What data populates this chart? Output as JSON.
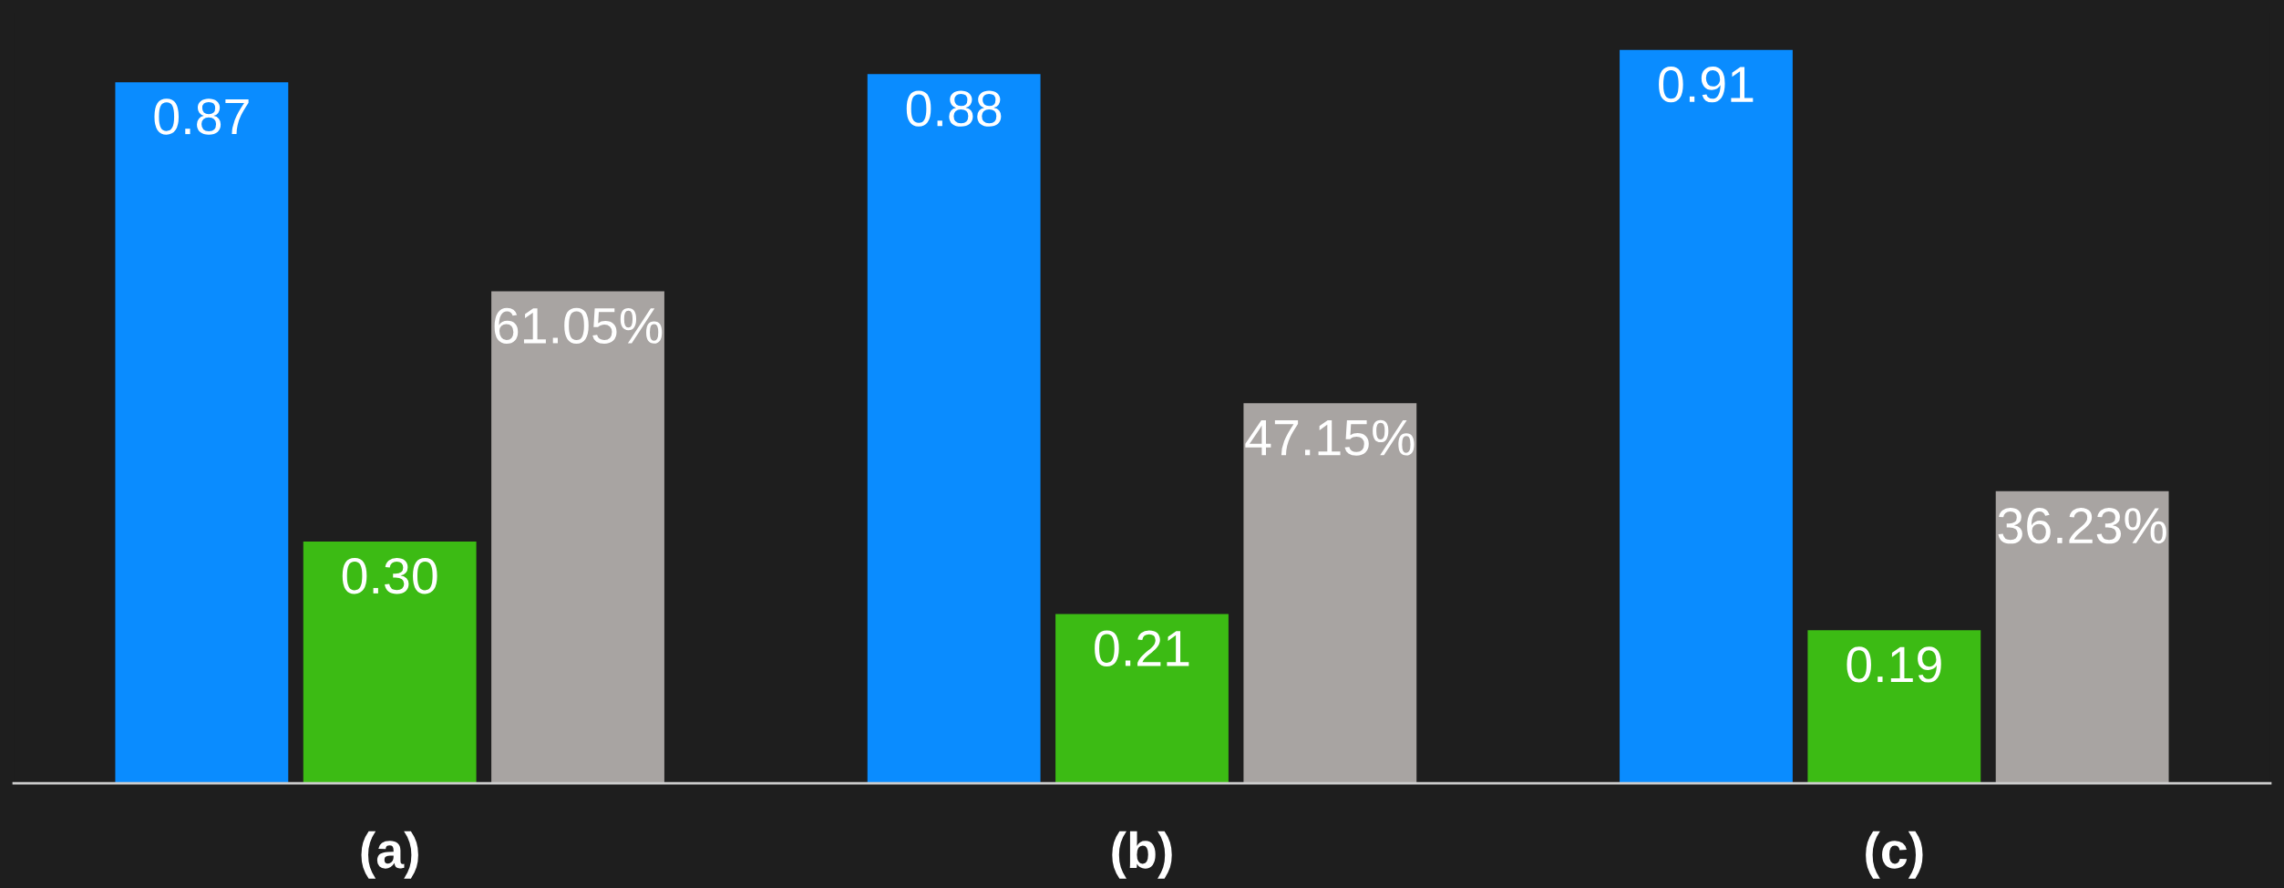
{
  "chart_data": {
    "type": "bar",
    "categories": [
      "(a)",
      "(b)",
      "(c)"
    ],
    "series": [
      {
        "color": "#0a8cff",
        "values": [
          0.87,
          0.88,
          0.91
        ],
        "value_labels": [
          "0.87",
          "0.88",
          "0.91"
        ]
      },
      {
        "color": "#3cbb14",
        "values": [
          0.3,
          0.21,
          0.19
        ],
        "value_labels": [
          "0.30",
          "0.21",
          "0.19"
        ]
      },
      {
        "color": "#a8a4a2",
        "values": [
          0.6105,
          0.4715,
          0.3623
        ],
        "value_labels": [
          "61.05%",
          "47.15%",
          "36.23%"
        ]
      }
    ],
    "grid": false,
    "legend": false
  }
}
